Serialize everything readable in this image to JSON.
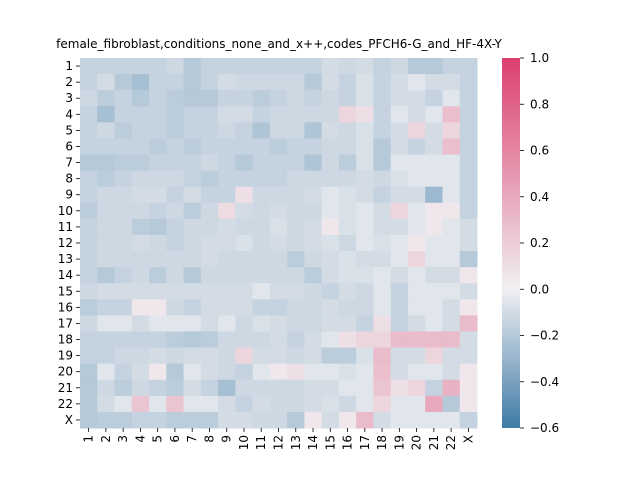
{
  "chart_data": {
    "type": "heatmap",
    "title": "female_fibroblast,conditions_none_and_x++,codes_PFCH6-G_and_HF-4X-Y",
    "xlabel": "",
    "ylabel": "",
    "rows": [
      "1",
      "2",
      "3",
      "4",
      "5",
      "6",
      "7",
      "8",
      "9",
      "10",
      "11",
      "12",
      "13",
      "14",
      "15",
      "16",
      "17",
      "18",
      "19",
      "20",
      "21",
      "22",
      "X"
    ],
    "columns": [
      "1",
      "2",
      "3",
      "4",
      "5",
      "6",
      "7",
      "8",
      "9",
      "10",
      "11",
      "12",
      "13",
      "14",
      "15",
      "16",
      "17",
      "18",
      "19",
      "20",
      "21",
      "22",
      "X"
    ],
    "colorbar": {
      "range": [
        -0.6,
        1.0
      ],
      "ticks": [
        -0.6,
        -0.4,
        -0.2,
        0.0,
        0.2,
        0.4,
        0.6,
        0.8,
        1.0
      ],
      "tick_labels": [
        "−0.6",
        "−0.4",
        "−0.2",
        "0.0",
        "0.2",
        "0.4",
        "0.6",
        "0.8",
        "1.0"
      ],
      "colors": {
        "low": "#3f7aa6",
        "mid": "#f0f0f2",
        "high": "#dc3f6e"
      }
    },
    "values": [
      [
        -0.15,
        -0.15,
        -0.15,
        -0.15,
        -0.15,
        -0.12,
        -0.2,
        -0.15,
        -0.15,
        -0.15,
        -0.15,
        -0.15,
        -0.15,
        -0.15,
        -0.1,
        -0.12,
        -0.1,
        -0.15,
        -0.12,
        -0.2,
        -0.2,
        -0.15,
        -0.15
      ],
      [
        -0.15,
        -0.1,
        -0.2,
        -0.25,
        -0.15,
        -0.15,
        -0.2,
        -0.15,
        -0.1,
        -0.12,
        -0.12,
        -0.12,
        -0.12,
        -0.2,
        -0.1,
        -0.15,
        -0.08,
        -0.15,
        -0.1,
        -0.05,
        -0.1,
        -0.1,
        -0.15
      ],
      [
        -0.12,
        -0.18,
        -0.15,
        -0.2,
        -0.15,
        -0.18,
        -0.2,
        -0.2,
        -0.15,
        -0.15,
        -0.18,
        -0.15,
        -0.12,
        -0.15,
        -0.12,
        -0.15,
        -0.08,
        -0.15,
        -0.1,
        -0.1,
        -0.15,
        -0.05,
        -0.15
      ],
      [
        -0.15,
        -0.25,
        -0.15,
        -0.15,
        -0.15,
        -0.18,
        -0.15,
        -0.15,
        -0.1,
        -0.1,
        -0.15,
        -0.12,
        -0.12,
        -0.12,
        -0.12,
        0.15,
        0.1,
        -0.15,
        -0.05,
        -0.1,
        -0.05,
        0.28,
        -0.15
      ],
      [
        -0.15,
        -0.12,
        -0.18,
        -0.15,
        -0.15,
        -0.18,
        -0.15,
        -0.15,
        -0.12,
        -0.15,
        -0.22,
        -0.12,
        -0.12,
        -0.22,
        -0.1,
        -0.12,
        -0.08,
        -0.15,
        -0.1,
        0.15,
        -0.1,
        0.15,
        -0.15
      ],
      [
        -0.15,
        -0.15,
        -0.15,
        -0.15,
        -0.18,
        -0.15,
        -0.18,
        -0.15,
        -0.15,
        -0.15,
        -0.15,
        -0.18,
        -0.15,
        -0.15,
        -0.12,
        -0.12,
        -0.08,
        -0.2,
        -0.1,
        -0.15,
        -0.1,
        0.28,
        -0.15
      ],
      [
        -0.2,
        -0.2,
        -0.18,
        -0.18,
        -0.15,
        -0.15,
        -0.15,
        -0.12,
        -0.15,
        -0.2,
        -0.15,
        -0.15,
        -0.15,
        -0.22,
        -0.12,
        -0.18,
        -0.08,
        -0.2,
        -0.05,
        -0.05,
        -0.05,
        -0.05,
        -0.15
      ],
      [
        -0.15,
        -0.18,
        -0.15,
        -0.12,
        -0.12,
        -0.12,
        -0.15,
        -0.18,
        -0.15,
        -0.15,
        -0.15,
        -0.15,
        -0.12,
        -0.12,
        -0.12,
        -0.12,
        -0.1,
        -0.12,
        -0.08,
        -0.05,
        -0.05,
        -0.05,
        -0.15
      ],
      [
        -0.15,
        -0.12,
        -0.12,
        -0.1,
        -0.1,
        -0.15,
        -0.1,
        -0.15,
        -0.15,
        0.1,
        -0.12,
        -0.12,
        -0.12,
        -0.1,
        -0.05,
        -0.08,
        -0.1,
        -0.15,
        -0.1,
        -0.1,
        -0.28,
        -0.05,
        -0.15
      ],
      [
        -0.18,
        -0.12,
        -0.12,
        -0.12,
        -0.15,
        -0.12,
        -0.18,
        -0.12,
        0.12,
        -0.1,
        -0.12,
        -0.1,
        -0.12,
        -0.12,
        -0.05,
        -0.08,
        -0.05,
        -0.1,
        0.15,
        -0.05,
        0.05,
        0.05,
        -0.15
      ],
      [
        -0.15,
        -0.12,
        -0.12,
        -0.18,
        -0.2,
        -0.15,
        -0.12,
        -0.12,
        -0.1,
        -0.12,
        -0.12,
        -0.08,
        -0.12,
        -0.1,
        0.05,
        -0.08,
        -0.05,
        -0.1,
        -0.1,
        -0.05,
        0.05,
        -0.05,
        -0.1
      ],
      [
        -0.15,
        -0.12,
        -0.12,
        -0.1,
        -0.12,
        -0.15,
        -0.12,
        -0.1,
        -0.1,
        -0.08,
        -0.12,
        -0.1,
        -0.12,
        -0.1,
        -0.08,
        -0.12,
        -0.05,
        -0.08,
        -0.05,
        0.05,
        -0.05,
        -0.05,
        -0.1
      ],
      [
        -0.15,
        -0.12,
        -0.12,
        -0.12,
        -0.12,
        -0.12,
        -0.12,
        -0.1,
        -0.12,
        -0.12,
        -0.12,
        -0.12,
        -0.18,
        -0.12,
        -0.1,
        -0.08,
        -0.1,
        -0.1,
        -0.05,
        0.15,
        -0.05,
        -0.05,
        -0.2
      ],
      [
        -0.15,
        -0.2,
        -0.15,
        -0.12,
        -0.18,
        -0.12,
        -0.2,
        -0.12,
        -0.12,
        -0.12,
        -0.12,
        -0.12,
        -0.12,
        -0.18,
        -0.1,
        -0.08,
        -0.08,
        -0.05,
        -0.1,
        -0.05,
        -0.1,
        -0.1,
        0.05
      ],
      [
        -0.12,
        -0.1,
        -0.1,
        -0.1,
        -0.1,
        -0.1,
        -0.1,
        -0.1,
        -0.1,
        -0.1,
        -0.05,
        -0.1,
        -0.1,
        -0.12,
        -0.15,
        -0.1,
        -0.12,
        -0.05,
        -0.15,
        -0.05,
        -0.05,
        -0.05,
        -0.1
      ],
      [
        -0.18,
        -0.15,
        -0.15,
        0.05,
        0.05,
        -0.12,
        -0.15,
        -0.1,
        -0.1,
        -0.1,
        -0.15,
        -0.15,
        -0.12,
        -0.12,
        -0.1,
        -0.12,
        -0.12,
        -0.05,
        -0.15,
        -0.05,
        -0.05,
        -0.1,
        0.05
      ],
      [
        -0.12,
        -0.05,
        -0.05,
        -0.1,
        -0.05,
        -0.05,
        -0.05,
        -0.1,
        -0.05,
        -0.12,
        -0.08,
        -0.1,
        -0.12,
        -0.12,
        -0.1,
        -0.1,
        -0.15,
        0.1,
        -0.15,
        -0.1,
        -0.05,
        -0.1,
        0.3
      ],
      [
        -0.15,
        -0.15,
        -0.15,
        -0.15,
        -0.15,
        -0.18,
        -0.2,
        -0.18,
        -0.12,
        -0.12,
        -0.12,
        -0.1,
        -0.15,
        -0.1,
        -0.05,
        0.1,
        0.15,
        0.15,
        0.3,
        0.3,
        0.3,
        0.3,
        -0.1
      ],
      [
        -0.15,
        -0.15,
        -0.12,
        -0.12,
        -0.1,
        -0.12,
        -0.1,
        -0.1,
        -0.12,
        0.15,
        -0.1,
        -0.1,
        -0.12,
        -0.1,
        -0.18,
        -0.18,
        -0.08,
        0.3,
        -0.1,
        -0.1,
        0.15,
        -0.1,
        -0.1
      ],
      [
        -0.2,
        -0.05,
        -0.15,
        -0.1,
        0.05,
        -0.2,
        -0.05,
        -0.1,
        -0.12,
        -0.15,
        -0.05,
        0.05,
        0.1,
        -0.05,
        -0.05,
        -0.08,
        -0.05,
        0.28,
        -0.1,
        -0.05,
        -0.05,
        -0.1,
        0.05
      ],
      [
        -0.2,
        -0.12,
        -0.18,
        -0.12,
        -0.15,
        -0.18,
        -0.1,
        -0.15,
        -0.25,
        -0.12,
        -0.12,
        -0.12,
        -0.12,
        -0.1,
        -0.1,
        -0.05,
        -0.05,
        0.25,
        0.1,
        0.15,
        -0.15,
        0.35,
        0.05
      ],
      [
        -0.2,
        -0.1,
        -0.05,
        0.25,
        -0.05,
        0.25,
        -0.05,
        -0.05,
        -0.1,
        -0.15,
        -0.1,
        -0.12,
        -0.12,
        -0.1,
        -0.08,
        -0.12,
        -0.05,
        0.15,
        -0.05,
        -0.05,
        0.4,
        -0.2,
        0.05
      ],
      [
        -0.2,
        -0.18,
        -0.18,
        -0.15,
        -0.15,
        -0.18,
        -0.18,
        -0.18,
        -0.1,
        -0.1,
        -0.12,
        -0.12,
        -0.2,
        0.05,
        -0.1,
        0.05,
        0.3,
        -0.1,
        -0.05,
        -0.05,
        -0.05,
        -0.05,
        -0.15
      ]
    ]
  }
}
